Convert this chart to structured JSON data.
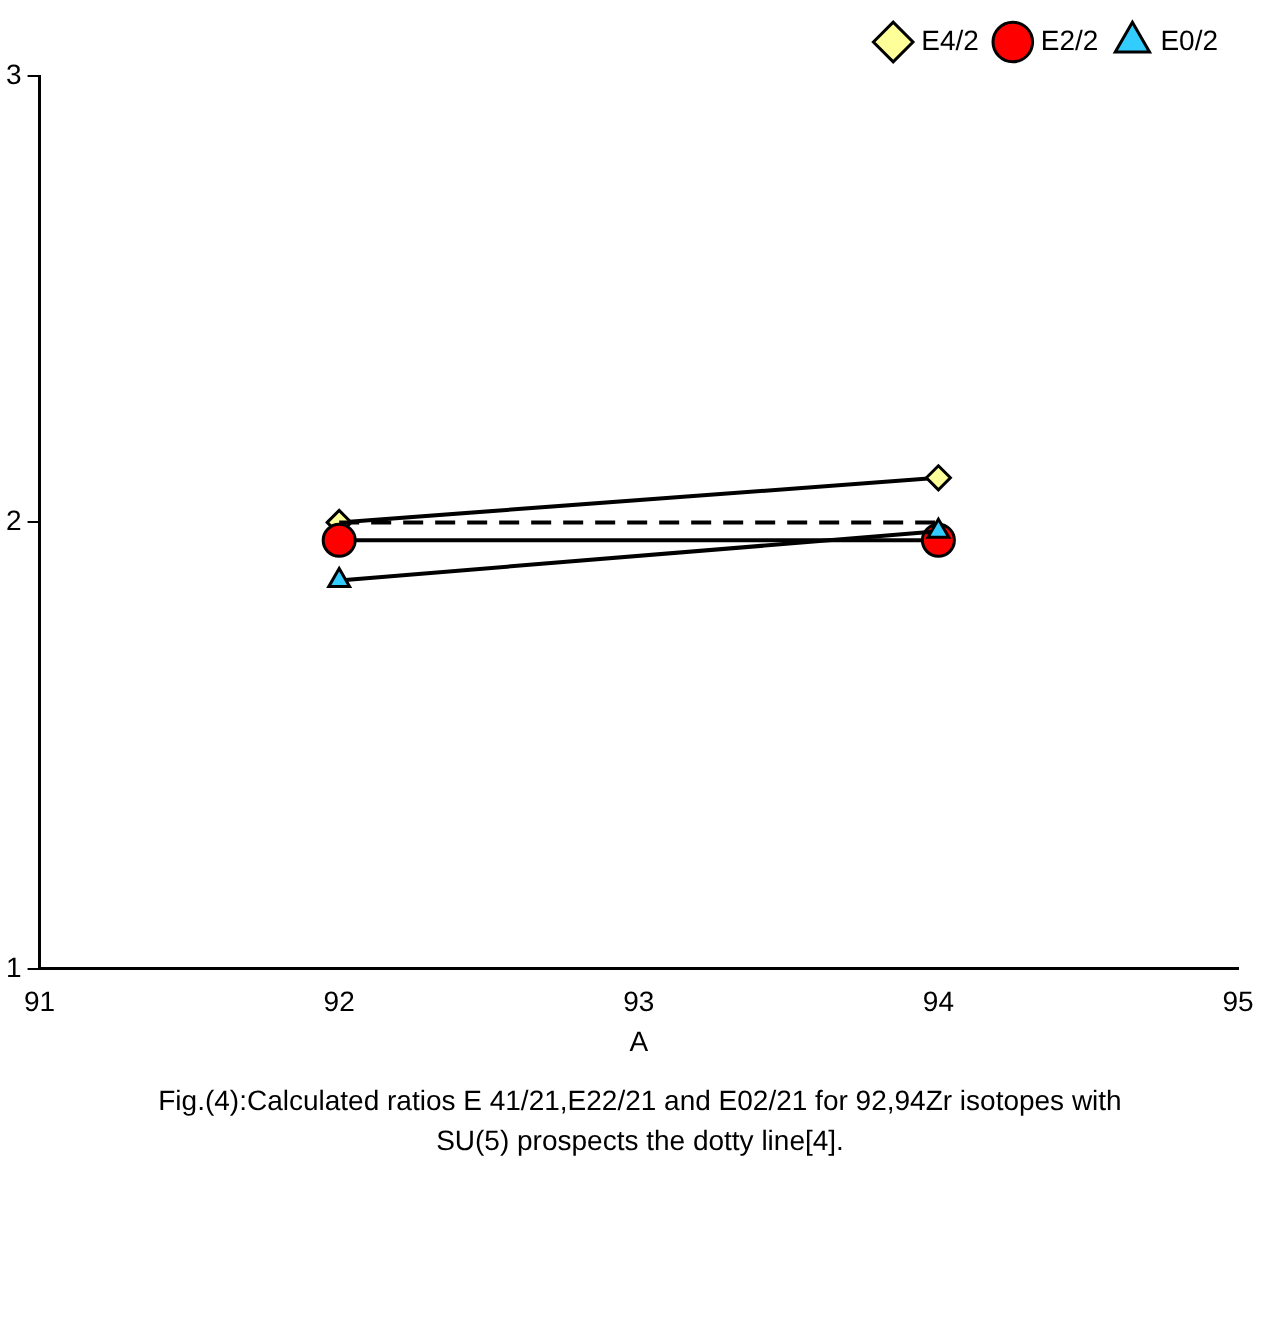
{
  "chart_data": {
    "type": "line",
    "xlabel": "A",
    "x": [
      92,
      94
    ],
    "xlim": [
      91,
      95
    ],
    "xticks": [
      91,
      92,
      93,
      94,
      95
    ],
    "ylim": [
      1,
      3
    ],
    "yticks": [
      1,
      2,
      3
    ],
    "grid": false,
    "legend": "top right",
    "line_style": "solid",
    "series": [
      {
        "name": "E4/2",
        "color": "#ffff99",
        "marker": "diamond",
        "values": [
          2.0,
          2.1
        ]
      },
      {
        "name": "E2/2",
        "color": "#ff0000",
        "marker": "circle",
        "values": [
          1.96,
          1.96
        ]
      },
      {
        "name": "E0/2",
        "color": "#33ccff",
        "marker": "triangle",
        "values": [
          1.87,
          1.98
        ]
      },
      {
        "color": "#000000",
        "marker": "none",
        "line_style": "dashed",
        "values": [
          2.0,
          2.0
        ]
      }
    ],
    "annotations": [
      "Fig.(4):Calculated ratios E 41/21,E22/21 and E02/21  for 92,94Zr isotopes with SU(5) prospects the dotty line[4]."
    ]
  }
}
